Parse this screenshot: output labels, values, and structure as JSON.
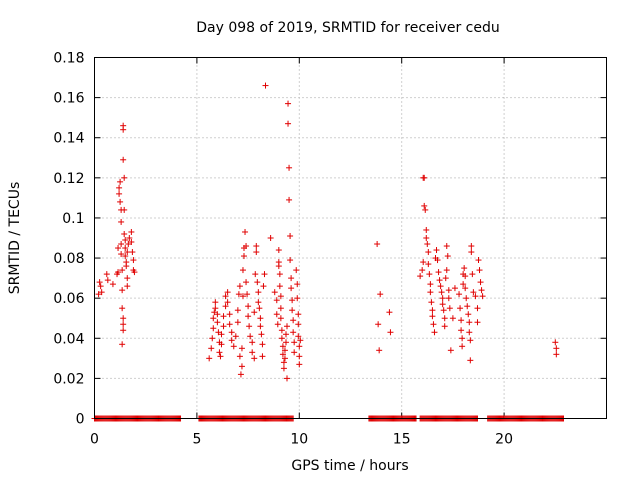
{
  "chart_data": {
    "type": "scatter",
    "title": "Day 098 of 2019, SRMTID for receiver cedu",
    "xlabel": "GPS time / hours",
    "ylabel": "SRMTID / TECUs",
    "xlim": [
      0,
      25
    ],
    "ylim": [
      0,
      0.18
    ],
    "grid": true,
    "marker": "+",
    "color": "#e00000",
    "xticks": [
      0,
      5,
      10,
      15,
      20
    ],
    "xtick_labels": [
      "0",
      "5",
      "10",
      "15",
      "20"
    ],
    "yticks": [
      0,
      0.02,
      0.04,
      0.06,
      0.08,
      0.1,
      0.12,
      0.14,
      0.16,
      0.18
    ],
    "ytick_labels": [
      "0",
      "0.02",
      "0.04",
      "0.06",
      "0.08",
      "0.1",
      "0.12",
      "0.14",
      "0.16",
      "0.18"
    ],
    "series": [
      {
        "name": "SRMTID",
        "points": [
          [
            0.2,
            0.062
          ],
          [
            0.25,
            0.068
          ],
          [
            0.3,
            0.066
          ],
          [
            0.35,
            0.063
          ],
          [
            0.6,
            0.072
          ],
          [
            0.65,
            0.069
          ],
          [
            0.9,
            0.067
          ],
          [
            1.1,
            0.072
          ],
          [
            1.15,
            0.073
          ],
          [
            1.15,
            0.085
          ],
          [
            1.2,
            0.115
          ],
          [
            1.2,
            0.112
          ],
          [
            1.25,
            0.108
          ],
          [
            1.25,
            0.118
          ],
          [
            1.3,
            0.104
          ],
          [
            1.3,
            0.098
          ],
          [
            1.3,
            0.087
          ],
          [
            1.3,
            0.082
          ],
          [
            1.35,
            0.074
          ],
          [
            1.35,
            0.064
          ],
          [
            1.35,
            0.055
          ],
          [
            1.4,
            0.05
          ],
          [
            1.4,
            0.047
          ],
          [
            1.4,
            0.044
          ],
          [
            1.35,
            0.037
          ],
          [
            1.4,
            0.146
          ],
          [
            1.4,
            0.144
          ],
          [
            1.4,
            0.129
          ],
          [
            1.45,
            0.12
          ],
          [
            1.45,
            0.104
          ],
          [
            1.45,
            0.092
          ],
          [
            1.5,
            0.089
          ],
          [
            1.5,
            0.085
          ],
          [
            1.5,
            0.081
          ],
          [
            1.55,
            0.078
          ],
          [
            1.55,
            0.076
          ],
          [
            1.6,
            0.07
          ],
          [
            1.6,
            0.066
          ],
          [
            1.6,
            0.083
          ],
          [
            1.65,
            0.087
          ],
          [
            1.7,
            0.09
          ],
          [
            1.8,
            0.093
          ],
          [
            1.8,
            0.088
          ],
          [
            1.85,
            0.083
          ],
          [
            1.9,
            0.079
          ],
          [
            1.9,
            0.074
          ],
          [
            1.95,
            0.073
          ],
          [
            5.6,
            0.03
          ],
          [
            5.7,
            0.035
          ],
          [
            5.75,
            0.04
          ],
          [
            5.8,
            0.045
          ],
          [
            5.8,
            0.05
          ],
          [
            5.85,
            0.053
          ],
          [
            5.9,
            0.058
          ],
          [
            5.9,
            0.055
          ],
          [
            6.0,
            0.052
          ],
          [
            6.0,
            0.048
          ],
          [
            6.05,
            0.043
          ],
          [
            6.1,
            0.038
          ],
          [
            6.1,
            0.033
          ],
          [
            6.15,
            0.031
          ],
          [
            6.2,
            0.037
          ],
          [
            6.2,
            0.042
          ],
          [
            6.3,
            0.046
          ],
          [
            6.3,
            0.051
          ],
          [
            6.4,
            0.056
          ],
          [
            6.4,
            0.061
          ],
          [
            6.5,
            0.063
          ],
          [
            6.5,
            0.058
          ],
          [
            6.6,
            0.052
          ],
          [
            6.6,
            0.047
          ],
          [
            6.7,
            0.043
          ],
          [
            6.7,
            0.039
          ],
          [
            6.8,
            0.036
          ],
          [
            6.9,
            0.041
          ],
          [
            7.0,
            0.048
          ],
          [
            7.0,
            0.054
          ],
          [
            7.05,
            0.062
          ],
          [
            7.1,
            0.066
          ],
          [
            7.1,
            0.031
          ],
          [
            7.15,
            0.022
          ],
          [
            7.2,
            0.026
          ],
          [
            7.2,
            0.035
          ],
          [
            7.25,
            0.061
          ],
          [
            7.25,
            0.074
          ],
          [
            7.3,
            0.081
          ],
          [
            7.3,
            0.085
          ],
          [
            7.35,
            0.093
          ],
          [
            7.4,
            0.086
          ],
          [
            7.4,
            0.068
          ],
          [
            7.45,
            0.062
          ],
          [
            7.5,
            0.056
          ],
          [
            7.5,
            0.051
          ],
          [
            7.55,
            0.046
          ],
          [
            7.6,
            0.041
          ],
          [
            7.7,
            0.038
          ],
          [
            7.7,
            0.033
          ],
          [
            7.8,
            0.03
          ],
          [
            7.8,
            0.053
          ],
          [
            7.85,
            0.072
          ],
          [
            7.9,
            0.083
          ],
          [
            7.9,
            0.086
          ],
          [
            7.95,
            0.068
          ],
          [
            8.0,
            0.063
          ],
          [
            8.0,
            0.058
          ],
          [
            8.05,
            0.055
          ],
          [
            8.1,
            0.05
          ],
          [
            8.1,
            0.046
          ],
          [
            8.15,
            0.042
          ],
          [
            8.2,
            0.037
          ],
          [
            8.2,
            0.031
          ],
          [
            8.25,
            0.066
          ],
          [
            8.3,
            0.072
          ],
          [
            8.35,
            0.166
          ],
          [
            8.6,
            0.09
          ],
          [
            8.8,
            0.063
          ],
          [
            8.9,
            0.059
          ],
          [
            8.9,
            0.052
          ],
          [
            8.95,
            0.047
          ],
          [
            9.0,
            0.076
          ],
          [
            9.0,
            0.084
          ],
          [
            9.0,
            0.078
          ],
          [
            9.05,
            0.072
          ],
          [
            9.05,
            0.066
          ],
          [
            9.1,
            0.061
          ],
          [
            9.1,
            0.055
          ],
          [
            9.1,
            0.05
          ],
          [
            9.15,
            0.044
          ],
          [
            9.15,
            0.04
          ],
          [
            9.2,
            0.036
          ],
          [
            9.2,
            0.032
          ],
          [
            9.25,
            0.028
          ],
          [
            9.25,
            0.025
          ],
          [
            9.3,
            0.03
          ],
          [
            9.3,
            0.034
          ],
          [
            9.35,
            0.038
          ],
          [
            9.35,
            0.042
          ],
          [
            9.4,
            0.046
          ],
          [
            9.4,
            0.02
          ],
          [
            9.45,
            0.157
          ],
          [
            9.45,
            0.147
          ],
          [
            9.5,
            0.125
          ],
          [
            9.5,
            0.109
          ],
          [
            9.55,
            0.091
          ],
          [
            9.55,
            0.079
          ],
          [
            9.6,
            0.07
          ],
          [
            9.6,
            0.065
          ],
          [
            9.65,
            0.059
          ],
          [
            9.65,
            0.054
          ],
          [
            9.7,
            0.049
          ],
          [
            9.7,
            0.043
          ],
          [
            9.75,
            0.038
          ],
          [
            9.75,
            0.033
          ],
          [
            9.85,
            0.074
          ],
          [
            9.9,
            0.067
          ],
          [
            9.9,
            0.06
          ],
          [
            9.95,
            0.052
          ],
          [
            9.95,
            0.047
          ],
          [
            9.95,
            0.041
          ],
          [
            10.0,
            0.036
          ],
          [
            10.0,
            0.031
          ],
          [
            10.0,
            0.027
          ],
          [
            10.05,
            0.039
          ],
          [
            13.8,
            0.087
          ],
          [
            13.85,
            0.047
          ],
          [
            13.9,
            0.034
          ],
          [
            13.95,
            0.062
          ],
          [
            14.4,
            0.053
          ],
          [
            14.45,
            0.043
          ],
          [
            15.9,
            0.071
          ],
          [
            16.0,
            0.074
          ],
          [
            16.05,
            0.078
          ],
          [
            16.05,
            0.12
          ],
          [
            16.1,
            0.12
          ],
          [
            16.1,
            0.106
          ],
          [
            16.15,
            0.104
          ],
          [
            16.2,
            0.094
          ],
          [
            16.2,
            0.09
          ],
          [
            16.25,
            0.087
          ],
          [
            16.3,
            0.083
          ],
          [
            16.3,
            0.077
          ],
          [
            16.35,
            0.072
          ],
          [
            16.4,
            0.067
          ],
          [
            16.4,
            0.063
          ],
          [
            16.45,
            0.058
          ],
          [
            16.5,
            0.054
          ],
          [
            16.5,
            0.051
          ],
          [
            16.55,
            0.047
          ],
          [
            16.6,
            0.043
          ],
          [
            16.65,
            0.08
          ],
          [
            16.7,
            0.084
          ],
          [
            16.75,
            0.079
          ],
          [
            16.8,
            0.073
          ],
          [
            16.85,
            0.069
          ],
          [
            16.9,
            0.066
          ],
          [
            16.95,
            0.063
          ],
          [
            17.0,
            0.06
          ],
          [
            17.0,
            0.057
          ],
          [
            17.05,
            0.054
          ],
          [
            17.1,
            0.05
          ],
          [
            17.1,
            0.046
          ],
          [
            17.15,
            0.07
          ],
          [
            17.2,
            0.074
          ],
          [
            17.2,
            0.086
          ],
          [
            17.25,
            0.081
          ],
          [
            17.3,
            0.064
          ],
          [
            17.3,
            0.06
          ],
          [
            17.35,
            0.055
          ],
          [
            17.4,
            0.034
          ],
          [
            17.5,
            0.05
          ],
          [
            17.6,
            0.065
          ],
          [
            17.8,
            0.062
          ],
          [
            17.85,
            0.055
          ],
          [
            17.9,
            0.049
          ],
          [
            17.9,
            0.044
          ],
          [
            17.95,
            0.04
          ],
          [
            17.95,
            0.036
          ],
          [
            18.0,
            0.067
          ],
          [
            18.0,
            0.072
          ],
          [
            18.05,
            0.075
          ],
          [
            18.1,
            0.071
          ],
          [
            18.1,
            0.065
          ],
          [
            18.15,
            0.06
          ],
          [
            18.2,
            0.056
          ],
          [
            18.25,
            0.052
          ],
          [
            18.3,
            0.048
          ],
          [
            18.3,
            0.043
          ],
          [
            18.35,
            0.039
          ],
          [
            18.35,
            0.029
          ],
          [
            18.4,
            0.086
          ],
          [
            18.4,
            0.083
          ],
          [
            18.45,
            0.072
          ],
          [
            18.5,
            0.063
          ],
          [
            18.6,
            0.061
          ],
          [
            18.7,
            0.055
          ],
          [
            18.7,
            0.048
          ],
          [
            18.75,
            0.079
          ],
          [
            18.8,
            0.074
          ],
          [
            18.85,
            0.068
          ],
          [
            18.9,
            0.064
          ],
          [
            18.95,
            0.061
          ],
          [
            22.5,
            0.038
          ],
          [
            22.55,
            0.035
          ],
          [
            22.55,
            0.032
          ]
        ],
        "zero_intervals": [
          [
            0.0,
            4.2
          ],
          [
            5.1,
            9.7
          ],
          [
            13.4,
            15.7
          ],
          [
            15.9,
            18.7
          ],
          [
            19.2,
            22.9
          ]
        ]
      }
    ]
  }
}
